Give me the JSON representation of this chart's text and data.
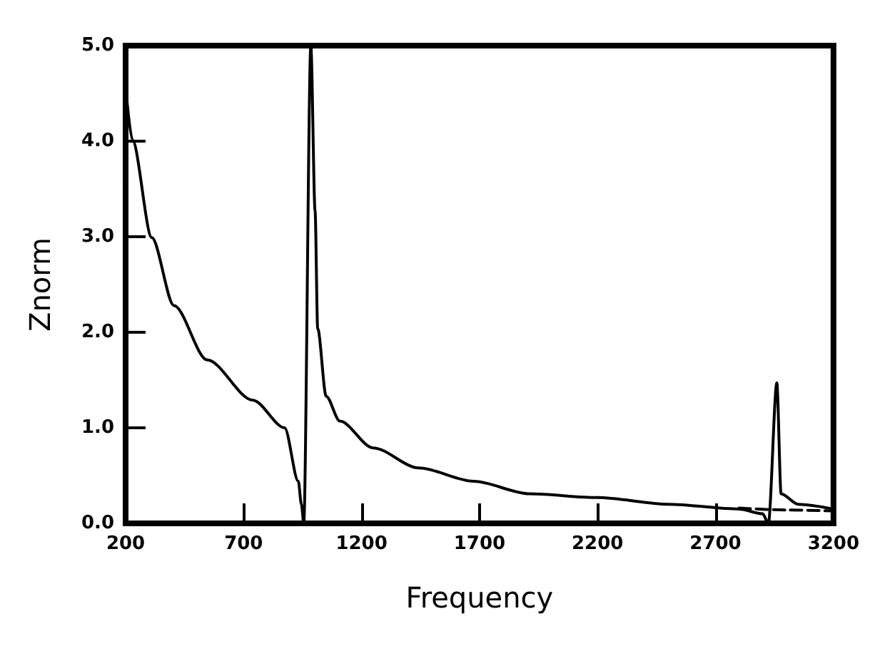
{
  "chart_data": {
    "type": "line",
    "xlabel": "Frequency",
    "ylabel": "Znorm",
    "xlim": [
      200,
      3200
    ],
    "xticks": [
      200,
      700,
      1200,
      1700,
      2200,
      2700,
      3200
    ],
    "ylim": [
      0,
      5
    ],
    "yticks": [
      {
        "value": 0,
        "label": "0.0"
      },
      {
        "value": 1,
        "label": "1.0"
      },
      {
        "value": 2,
        "label": "2.0"
      },
      {
        "value": 3,
        "label": "3.0"
      },
      {
        "value": 4,
        "label": "4.0"
      },
      {
        "value": 5,
        "label": "5.0"
      }
    ],
    "grid": false,
    "marker": "none",
    "series": [
      {
        "color": "#000000",
        "line_style": "solid",
        "x": [
          200,
          229,
          311,
          405,
          546,
          739,
          874,
          932,
          945,
          955,
          985,
          1003,
          1014,
          1050,
          1108,
          1249,
          1442,
          1676,
          1910,
          2200,
          2500,
          2800,
          2900,
          2924,
          2960,
          2978,
          3050,
          3200
        ],
        "values": [
          4.57,
          4.01,
          2.99,
          2.28,
          1.71,
          1.29,
          1.0,
          0.44,
          0.2,
          0,
          5.0,
          3.27,
          2.04,
          1.33,
          1.07,
          0.79,
          0.58,
          0.44,
          0.31,
          0.27,
          0.2,
          0.15,
          0.1,
          0,
          1.47,
          0.31,
          0.2,
          0.15
        ]
      },
      {
        "color": "#000000",
        "line_style": "dashed",
        "x": [
          2800,
          3000,
          3200
        ],
        "values": [
          0.16,
          0.14,
          0.13
        ]
      }
    ]
  }
}
